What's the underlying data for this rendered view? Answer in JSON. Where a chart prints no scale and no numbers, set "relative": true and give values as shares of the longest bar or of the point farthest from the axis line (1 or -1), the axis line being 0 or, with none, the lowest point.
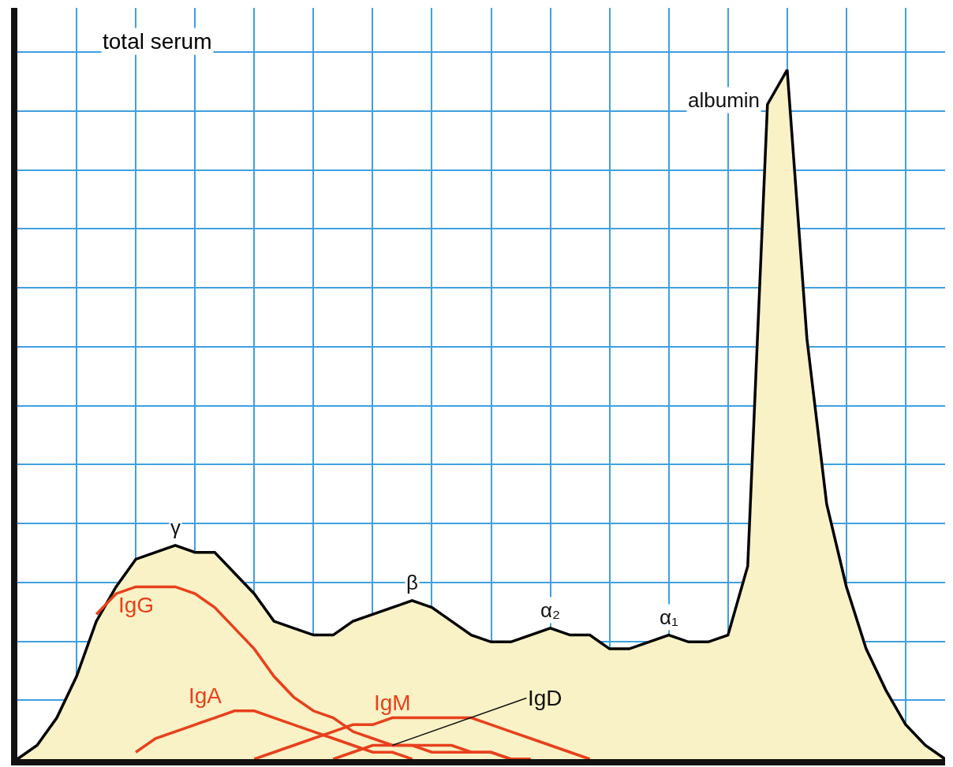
{
  "chart_data": {
    "type": "area",
    "relative": true,
    "grid": true,
    "legend": false,
    "marker": "none",
    "line_style": "solid",
    "categories": [
      null,
      null,
      null,
      null,
      null,
      null,
      null,
      null,
      null,
      null,
      null,
      null,
      null,
      null,
      null,
      null,
      null,
      null,
      null,
      null,
      null,
      null,
      null,
      null,
      null,
      null,
      null,
      null,
      null,
      null,
      null,
      null,
      null,
      null,
      null,
      null,
      null,
      null,
      null,
      null,
      null,
      null,
      null,
      null,
      null,
      null,
      null,
      null
    ],
    "series": [
      {
        "name": "total serum",
        "color": "#000000",
        "values": [
          0,
          0.02,
          0.06,
          0.12,
          0.2,
          0.25,
          0.29,
          0.3,
          0.31,
          0.3,
          0.3,
          0.27,
          0.24,
          0.2,
          0.19,
          0.18,
          0.18,
          0.2,
          0.21,
          0.22,
          0.23,
          0.22,
          0.2,
          0.18,
          0.17,
          0.17,
          0.18,
          0.19,
          0.18,
          0.18,
          0.16,
          0.16,
          0.17,
          0.18,
          0.17,
          0.17,
          0.18,
          0.28,
          0.95,
          1,
          0.61,
          0.37,
          0.25,
          0.16,
          0.1,
          0.05,
          0.02,
          0
        ]
      },
      {
        "name": "IgG",
        "type": "line",
        "color": "#e8401c",
        "values": [
          null,
          null,
          null,
          null,
          0.21,
          0.24,
          0.25,
          0.25,
          0.25,
          0.24,
          0.22,
          0.19,
          0.16,
          0.12,
          0.09,
          0.07,
          0.06,
          0.04,
          0.03,
          0.02,
          0.02,
          0.01,
          0.01,
          0.01,
          0.01,
          0,
          0,
          null,
          null,
          null,
          null,
          null,
          null,
          null,
          null,
          null,
          null,
          null,
          null,
          null,
          null,
          null,
          null,
          null,
          null,
          null,
          null,
          null
        ]
      },
      {
        "name": "IgA",
        "type": "line",
        "color": "#e8401c",
        "values": [
          null,
          null,
          null,
          null,
          null,
          null,
          0.01,
          0.03,
          0.04,
          0.05,
          0.06,
          0.07,
          0.07,
          0.06,
          0.05,
          0.04,
          0.03,
          0.02,
          0.01,
          0.01,
          0,
          null,
          null,
          null,
          null,
          null,
          null,
          null,
          null,
          null,
          null,
          null,
          null,
          null,
          null,
          null,
          null,
          null,
          null,
          null,
          null,
          null,
          null,
          null,
          null,
          null,
          null,
          null
        ]
      },
      {
        "name": "IgM",
        "type": "line",
        "color": "#e8401c",
        "values": [
          null,
          null,
          null,
          null,
          null,
          null,
          null,
          null,
          null,
          null,
          null,
          null,
          0,
          0.01,
          0.02,
          0.03,
          0.04,
          0.05,
          0.05,
          0.06,
          0.06,
          0.06,
          0.06,
          0.06,
          0.05,
          0.04,
          0.03,
          0.02,
          0.01,
          0,
          null,
          null,
          null,
          null,
          null,
          null,
          null,
          null,
          null,
          null,
          null,
          null,
          null,
          null,
          null,
          null,
          null,
          null
        ]
      },
      {
        "name": "IgD",
        "type": "line",
        "color": "#e8401c",
        "values": [
          null,
          null,
          null,
          null,
          null,
          null,
          null,
          null,
          null,
          null,
          null,
          null,
          null,
          null,
          null,
          null,
          0,
          0.01,
          0.02,
          0.02,
          0.02,
          0.02,
          0.02,
          0.01,
          0.01,
          0,
          0,
          null,
          null,
          null,
          null,
          null,
          null,
          null,
          null,
          null,
          null,
          null,
          null,
          null,
          null,
          null,
          null,
          null,
          null,
          null,
          null,
          null
        ]
      }
    ],
    "annotations": [
      "γ",
      "β",
      "α₂",
      "α₁",
      "albumin"
    ]
  }
}
